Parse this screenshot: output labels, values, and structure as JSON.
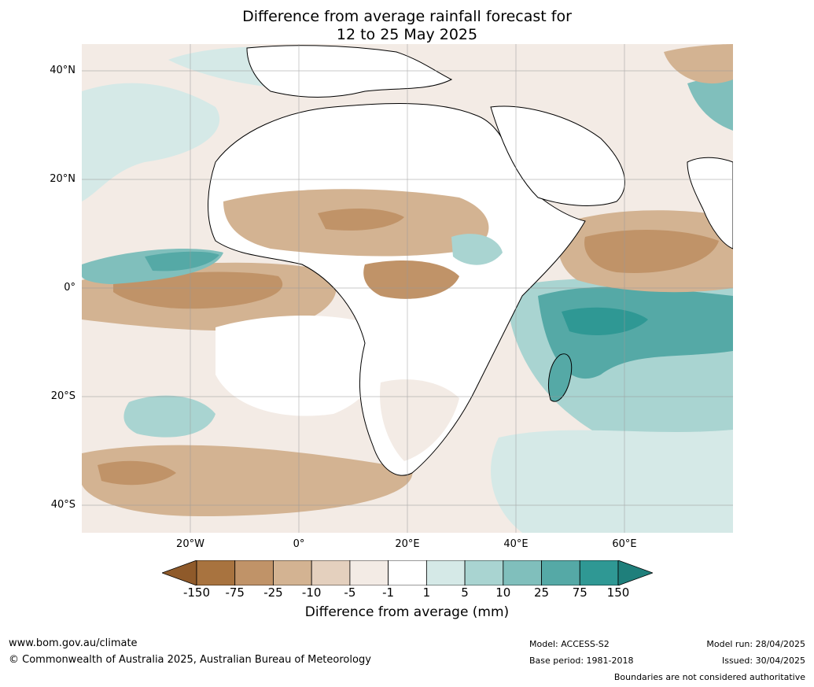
{
  "title": [
    "Difference from average rainfall forecast for",
    "12 to 25 May 2025"
  ],
  "lat_labels": [
    "40°N",
    "20°N",
    "0°",
    "20°S",
    "40°S"
  ],
  "lon_labels": [
    "20°W",
    "0°",
    "20°E",
    "40°E",
    "60°E"
  ],
  "legend": {
    "title": "Difference from average (mm)",
    "ticks": [
      "-150",
      "-75",
      "-25",
      "-10",
      "-5",
      "-1",
      "1",
      "5",
      "10",
      "25",
      "75",
      "150"
    ],
    "colors": [
      "#8f5a2a",
      "#a8733f",
      "#c09368",
      "#d3b392",
      "#e4d0be",
      "#f3ebe5",
      "#ffffff",
      "#d5e9e7",
      "#a9d4d1",
      "#80bfbc",
      "#55a9a6",
      "#2f9894",
      "#1f7f7b"
    ]
  },
  "footer": {
    "url": "www.bom.gov.au/climate",
    "copyright": "© Commonwealth of Australia 2025, Australian Bureau of Meteorology",
    "model": "Model: ACCESS-S2",
    "base_period": "Base period: 1981-2018",
    "model_run": "Model run: 28/04/2025",
    "issued": "Issued: 30/04/2025",
    "disclaimer": "Boundaries are not considered authoritative"
  }
}
